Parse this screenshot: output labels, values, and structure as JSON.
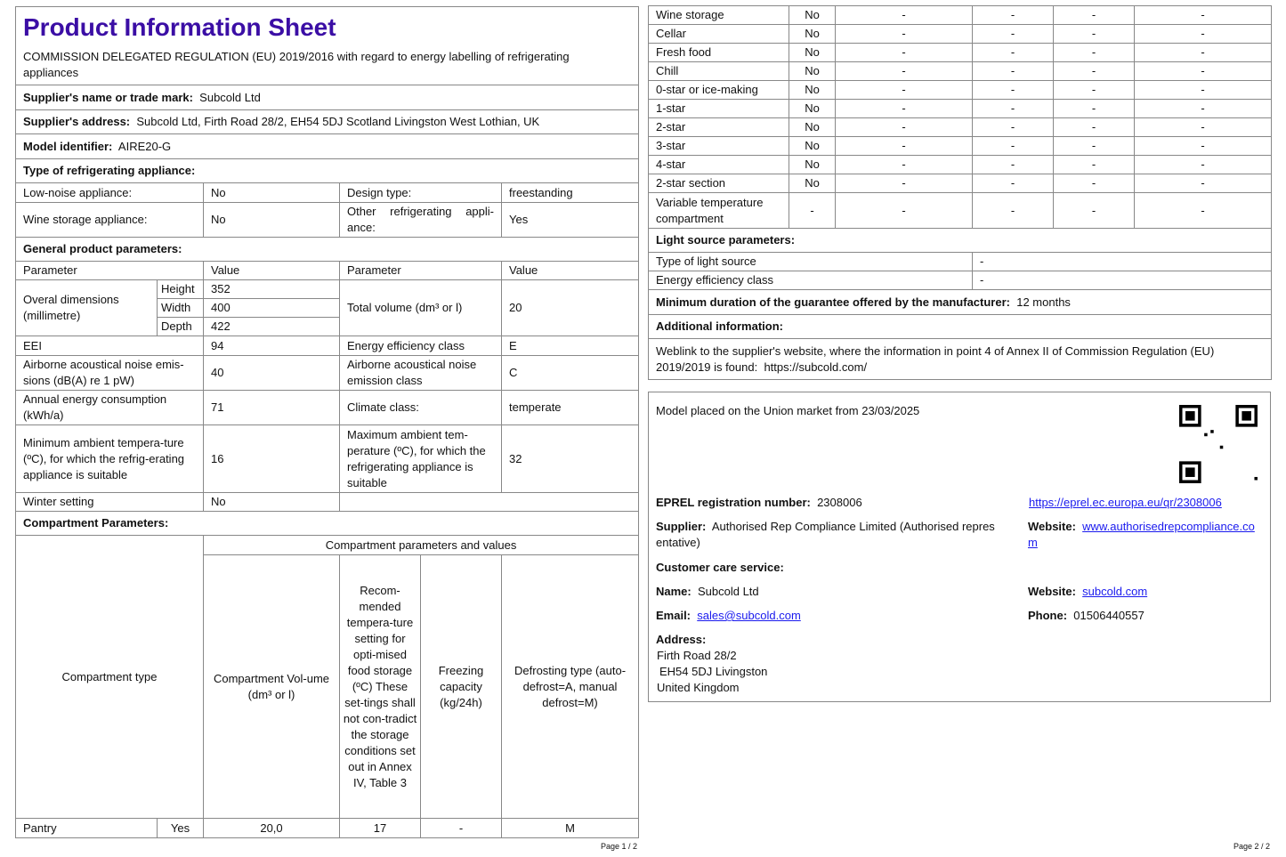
{
  "page1": {
    "title": "Product Information Sheet",
    "regulation": "COMMISSION DELEGATED REGULATION (EU) 2019/2016 with regard to energy labelling of refrigerating appliances",
    "supplier_name_label": "Supplier's name or trade mark:",
    "supplier_name": "Subcold Ltd",
    "supplier_address_label": "Supplier's address:",
    "supplier_address": "Subcold Ltd, Firth Road 28/2, EH54 5DJ Scotland Livingston West Lothian, UK",
    "model_label": "Model identifier:",
    "model": "AIRE20-G",
    "type_heading": "Type of refrigerating appliance:",
    "low_noise_label": "Low-noise appliance:",
    "low_noise": "No",
    "design_type_label": "Design type:",
    "design_type": "freestanding",
    "wine_label": "Wine storage appliance:",
    "wine": "No",
    "other_label": "Other refrigerating appli-ance:",
    "other": "Yes",
    "general_heading": "General product parameters:",
    "param_header": "Parameter",
    "value_header": "Value",
    "dims_label": "Overal dimensions (millimetre)",
    "height_label": "Height",
    "height": "352",
    "width_label": "Width",
    "width": "400",
    "depth_label": "Depth",
    "depth": "422",
    "volume_label": "Total volume (dm³ or l)",
    "volume": "20",
    "eei_label": "EEI",
    "eei": "94",
    "eclass_label": "Energy efficiency class",
    "eclass": "E",
    "noise_label": "Airborne acoustical noise emis-sions (dB(A) re 1 pW)",
    "noise": "40",
    "noise_class_label": "Airborne acoustical noise emission class",
    "noise_class": "C",
    "annual_label": "Annual energy consumption (kWh/a)",
    "annual": "71",
    "climate_label": "Climate class:",
    "climate": "temperate",
    "min_amb_label": "Minimum ambient tempera-ture (ºC), for which the refrig-erating appliance is suitable",
    "min_amb": "16",
    "max_amb_label": "Maximum ambient tem-perature (ºC), for which the refrigerating appliance is suitable",
    "max_amb": "32",
    "winter_label": "Winter setting",
    "winter": "No",
    "compartment_heading": "Compartment Parameters:",
    "comp_values_header": "Compartment parameters and values",
    "comp_type_header": "Compartment type",
    "comp_volume_header": "Compartment Vol-ume (dm³ or l)",
    "comp_temp_header": "Recom-mended tempera-ture setting for opti-mised food storage (ºC) These set-tings shall not con-tradict the storage conditions set out in Annex IV, Table 3",
    "comp_freeze_header": "Freezing capacity (kg/24h)",
    "comp_defrost_header": "Defrosting type (auto-defrost=A, manual defrost=M)",
    "rows": [
      {
        "type": "Pantry",
        "present": "Yes",
        "volume": "20,0",
        "temp": "17",
        "freeze": "-",
        "defrost": "M"
      }
    ],
    "footer": "Page 1 / 2"
  },
  "page2": {
    "compartments": [
      {
        "type": "Wine storage",
        "present": "No"
      },
      {
        "type": "Cellar",
        "present": "No"
      },
      {
        "type": "Fresh food",
        "present": "No"
      },
      {
        "type": "Chill",
        "present": "No"
      },
      {
        "type": "0-star or ice-making",
        "present": "No"
      },
      {
        "type": "1-star",
        "present": "No"
      },
      {
        "type": "2-star",
        "present": "No"
      },
      {
        "type": "3-star",
        "present": "No"
      },
      {
        "type": "4-star",
        "present": "No"
      },
      {
        "type": "2-star section",
        "present": "No"
      },
      {
        "type": "Variable temperature compartment",
        "present": "-"
      }
    ],
    "dash": "-",
    "light_heading": "Light source parameters:",
    "light_type_label": "Type of light source",
    "light_type": "-",
    "light_class_label": "Energy efficiency class",
    "light_class": "-",
    "guarantee_label": "Minimum duration of the guarantee offered by the manufacturer:",
    "guarantee": "12 months",
    "additional_heading": "Additional information:",
    "weblink_text": "Weblink to the supplier's website, where the information in point 4 of Annex II of Commission Regulation (EU) 2019/2019 is found:",
    "weblink": "https://subcold.com/",
    "market_text": "Model placed on the Union market from 23/03/2025",
    "eprel_label": "EPREL registration number:",
    "eprel": "2308006",
    "eprel_url": "https://eprel.ec.europa.eu/qr/2308006",
    "supplier_label": "Supplier:",
    "supplier": "Authorised Rep Compliance Limited (Authorised repres entative)",
    "website_label": "Website:",
    "supplier_website": "www.authorisedrepcompliance.com",
    "care_heading": "Customer care service:",
    "name_label": "Name:",
    "name": "Subcold Ltd",
    "care_website": "subcold.com",
    "email_label": "Email:",
    "email": "sales@subcold.com",
    "phone_label": "Phone:",
    "phone": "01506440557",
    "address_label": "Address:",
    "address_line1": "Firth Road 28/2",
    "address_line2": "EH54 5DJ Livingston",
    "address_line3": "United Kingdom",
    "footer": "Page 2 / 2"
  },
  "colors": {
    "title": "#3b0ea5",
    "link": "#1a1aee",
    "border": "#888888"
  },
  "icons": [
    "qr-code-icon"
  ]
}
